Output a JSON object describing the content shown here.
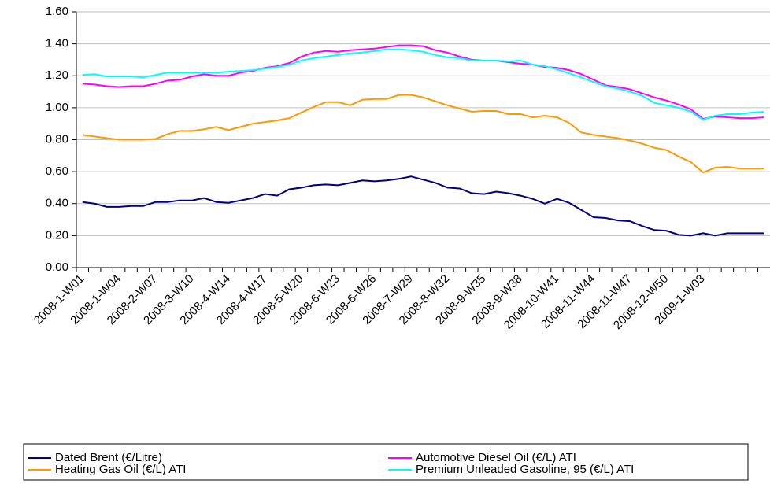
{
  "chart_data": {
    "type": "line",
    "categories": [
      "2008-1-W01",
      null,
      null,
      "2008-1-W04",
      null,
      null,
      "2008-2-W07",
      null,
      null,
      "2008-3-W10",
      null,
      null,
      "2008-4-W14",
      null,
      null,
      "2008-4-W17",
      null,
      null,
      "2008-5-W20",
      null,
      null,
      "2008-6-W23",
      null,
      null,
      "2008-6-W26",
      null,
      null,
      "2008-7-W29",
      null,
      null,
      "2008-8-W32",
      null,
      null,
      "2008-9-W35",
      null,
      null,
      "2008-9-W38",
      null,
      null,
      "2008-10-W41",
      null,
      null,
      "2008-11-W44",
      null,
      null,
      "2008-11-W47",
      null,
      null,
      "2008-12-W50",
      null,
      null,
      "2009-1-W03",
      null,
      null,
      null,
      null,
      null
    ],
    "series": [
      {
        "name": "Dated Brent (€/Litre)",
        "color": "#000080",
        "values": [
          0.41,
          0.4,
          0.38,
          0.38,
          0.385,
          0.385,
          0.41,
          0.41,
          0.42,
          0.42,
          0.435,
          0.41,
          0.405,
          0.42,
          0.435,
          0.46,
          0.45,
          0.49,
          0.5,
          0.515,
          0.52,
          0.515,
          0.53,
          0.545,
          0.54,
          0.545,
          0.555,
          0.57,
          0.55,
          0.53,
          0.5,
          0.495,
          0.465,
          0.46,
          0.475,
          0.465,
          0.45,
          0.43,
          0.4,
          0.43,
          0.405,
          0.36,
          0.315,
          0.31,
          0.295,
          0.29,
          0.26,
          0.235,
          0.23,
          0.205,
          0.2,
          0.215,
          0.2,
          0.215,
          0.215,
          0.215,
          0.215
        ]
      },
      {
        "name": "Automotive Diesel Oil (€/L) ATI",
        "color": "#ff00ff",
        "values": [
          1.15,
          1.145,
          1.135,
          1.13,
          1.135,
          1.135,
          1.15,
          1.17,
          1.175,
          1.195,
          1.21,
          1.2,
          1.2,
          1.22,
          1.23,
          1.25,
          1.26,
          1.28,
          1.32,
          1.345,
          1.355,
          1.35,
          1.36,
          1.365,
          1.37,
          1.38,
          1.39,
          1.39,
          1.385,
          1.36,
          1.345,
          1.32,
          1.3,
          1.295,
          1.295,
          1.285,
          1.275,
          1.27,
          1.255,
          1.25,
          1.235,
          1.21,
          1.175,
          1.14,
          1.13,
          1.115,
          1.09,
          1.065,
          1.045,
          1.02,
          0.99,
          0.93,
          0.945,
          0.94,
          0.935,
          0.935,
          0.94
        ]
      },
      {
        "name": "Heating Gas Oil (€/L) ATI",
        "color": "#ff9900",
        "values": [
          0.83,
          0.82,
          0.81,
          0.8,
          0.8,
          0.8,
          0.805,
          0.835,
          0.855,
          0.855,
          0.865,
          0.88,
          0.86,
          0.88,
          0.9,
          0.91,
          0.92,
          0.935,
          0.97,
          1.005,
          1.035,
          1.035,
          1.015,
          1.05,
          1.055,
          1.055,
          1.08,
          1.08,
          1.065,
          1.04,
          1.015,
          0.995,
          0.975,
          0.98,
          0.98,
          0.96,
          0.96,
          0.94,
          0.95,
          0.94,
          0.905,
          0.845,
          0.83,
          0.82,
          0.81,
          0.795,
          0.775,
          0.75,
          0.735,
          0.695,
          0.66,
          0.595,
          0.625,
          0.63,
          0.62,
          0.62,
          0.62
        ]
      },
      {
        "name": "Premium Unleaded Gasoline, 95 (€/L) ATI",
        "color": "#00ffff",
        "values": [
          1.205,
          1.21,
          1.195,
          1.195,
          1.195,
          1.19,
          1.205,
          1.22,
          1.22,
          1.22,
          1.22,
          1.22,
          1.225,
          1.23,
          1.235,
          1.245,
          1.255,
          1.27,
          1.295,
          1.31,
          1.32,
          1.33,
          1.34,
          1.345,
          1.355,
          1.365,
          1.365,
          1.36,
          1.35,
          1.33,
          1.315,
          1.31,
          1.295,
          1.295,
          1.295,
          1.29,
          1.295,
          1.27,
          1.26,
          1.24,
          1.215,
          1.19,
          1.16,
          1.135,
          1.12,
          1.1,
          1.075,
          1.03,
          1.015,
          1.0,
          0.975,
          0.925,
          0.95,
          0.96,
          0.96,
          0.97,
          0.975
        ]
      }
    ],
    "ylim": [
      0,
      1.6
    ],
    "yticks": [
      {
        "value": 0,
        "label": "0.00"
      },
      {
        "value": 0.2,
        "label": "0.20"
      },
      {
        "value": 0.4,
        "label": "0.40"
      },
      {
        "value": 0.6,
        "label": "0.60"
      },
      {
        "value": 0.8,
        "label": "0.80"
      },
      {
        "value": 1,
        "label": "1.00"
      },
      {
        "value": 1.2,
        "label": "1.20"
      },
      {
        "value": 1.4,
        "label": "1.40"
      },
      {
        "value": 1.6,
        "label": "1.60"
      }
    ],
    "grid": true,
    "legend": "bottom"
  }
}
